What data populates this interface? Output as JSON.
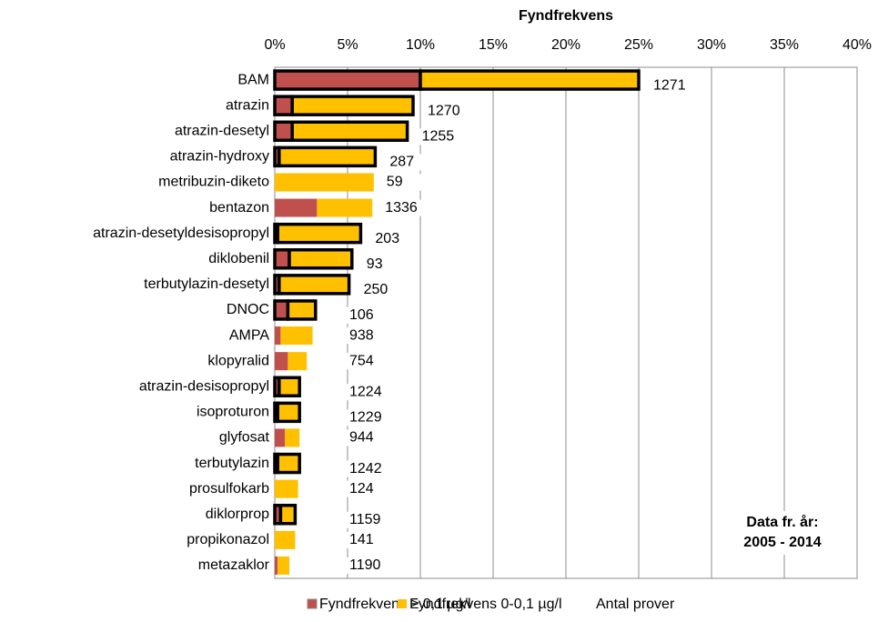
{
  "chart_data": {
    "type": "bar",
    "orientation": "horizontal",
    "stacked": true,
    "title": "Fyndfrekvens",
    "categories": [
      "BAM",
      "atrazin",
      "atrazin-desetyl",
      "atrazin-hydroxy",
      "metribuzin-diketo",
      "bentazon",
      "atrazin-desetyldesisopropyl",
      "diklobenil",
      "terbutylazin-desetyl",
      "DNOC",
      "AMPA",
      "klopyralid",
      "atrazin-desisopropyl",
      "isoproturon",
      "glyfosat",
      "terbutylazin",
      "prosulfokarb",
      "diklorprop",
      "propikonazol",
      "metazaklor"
    ],
    "series": [
      {
        "name": "Fyndfrekvens ≥ 0,1 µg/l",
        "color": "#c0504d",
        "values": [
          10,
          1.2,
          1.2,
          0.3,
          0,
          2.9,
          0.2,
          1.0,
          0.3,
          0.9,
          0.4,
          0.9,
          0.3,
          0.2,
          0.7,
          0.2,
          0,
          0.4,
          0,
          0.2
        ]
      },
      {
        "name": "Fyndfrekvens 0-0,1 µg/l",
        "color": "#ffc000",
        "values": [
          15,
          8.3,
          7.9,
          6.6,
          6.8,
          3.8,
          5.7,
          4.3,
          4.8,
          1.9,
          2.2,
          1.3,
          1.4,
          1.5,
          1.0,
          1.5,
          1.6,
          1.0,
          1.4,
          0.8
        ]
      }
    ],
    "counts": {
      "name": "Antal prover",
      "values": [
        1271,
        1270,
        1255,
        287,
        59,
        1336,
        203,
        93,
        250,
        106,
        938,
        754,
        1224,
        1229,
        944,
        1242,
        124,
        1159,
        141,
        1190
      ]
    },
    "outlined": [
      true,
      true,
      true,
      true,
      false,
      false,
      true,
      true,
      true,
      true,
      false,
      false,
      true,
      true,
      false,
      true,
      false,
      true,
      false,
      false
    ],
    "outline_color": "#000000",
    "xlim": [
      0,
      40
    ],
    "xticks": [
      {
        "value": 0,
        "label": "0%"
      },
      {
        "value": 5,
        "label": "5%"
      },
      {
        "value": 10,
        "label": "10%"
      },
      {
        "value": 15,
        "label": "15%"
      },
      {
        "value": 20,
        "label": "20%"
      },
      {
        "value": 25,
        "label": "25%"
      },
      {
        "value": 30,
        "label": "30%"
      },
      {
        "value": 35,
        "label": "35%"
      },
      {
        "value": 40,
        "label": "40%"
      }
    ],
    "grid": true,
    "legend": "bottom",
    "annotation": [
      "Data fr. år:",
      "2005 - 2014"
    ]
  }
}
